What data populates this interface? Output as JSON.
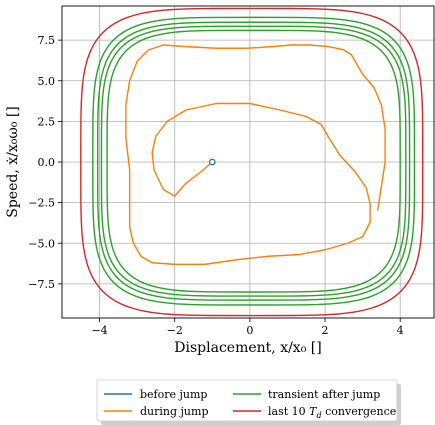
{
  "chart_data": {
    "type": "line",
    "xlabel": "Displacement, x/x₀ []",
    "ylabel": "Speed, ẋ/x₀ω₀ []",
    "xlim": [
      -5.0,
      4.9
    ],
    "ylim": [
      -9.6,
      9.6
    ],
    "xticks": [
      -4,
      -2,
      0,
      2,
      4
    ],
    "xtick_labels": [
      "−4",
      "−2",
      "0",
      "2",
      "4"
    ],
    "yticks": [
      -7.5,
      -5.0,
      -2.5,
      0.0,
      2.5,
      5.0,
      7.5
    ],
    "ytick_labels": [
      "−7.5",
      "−5.0",
      "−2.5",
      "0.0",
      "2.5",
      "5.0",
      "7.5"
    ],
    "grid": true,
    "legend_placement": "below plot, two columns",
    "series": [
      {
        "name": "before jump",
        "color": "#1f77b4",
        "marker": "open circle",
        "x": [
          -1.0
        ],
        "y": [
          0.0
        ]
      },
      {
        "name": "during jump",
        "color": "#ff7f0e",
        "x": [
          -1.0,
          -1.3,
          -1.7,
          -2.0,
          -2.3,
          -2.55,
          -2.6,
          -2.5,
          -2.2,
          -1.7,
          -0.9,
          0.0,
          0.8,
          1.5,
          1.9,
          2.1,
          2.4,
          2.8,
          3.1,
          3.2,
          3.2,
          3.0,
          2.6,
          2.0,
          1.3,
          0.5,
          -0.3,
          -1.2,
          -2.0,
          -2.6,
          -2.9,
          -3.1,
          -3.2,
          -3.2,
          -3.2,
          -3.3,
          -3.3,
          -3.2,
          -3.0,
          -2.7,
          -2.3,
          -1.7,
          -0.9,
          -0.1,
          0.6,
          1.1,
          1.6,
          2.1,
          2.5,
          2.7,
          2.8,
          2.9,
          3.0,
          3.3,
          3.5,
          3.6,
          3.6,
          3.5,
          3.4
        ],
        "y": [
          0.0,
          -0.6,
          -1.3,
          -2.1,
          -1.7,
          -0.5,
          0.6,
          1.6,
          2.5,
          3.2,
          3.6,
          3.6,
          3.2,
          2.8,
          2.3,
          1.5,
          0.4,
          -0.6,
          -1.6,
          -2.6,
          -3.7,
          -4.6,
          -5.0,
          -5.4,
          -5.7,
          -5.8,
          -6.0,
          -6.3,
          -6.3,
          -6.2,
          -5.8,
          -5.0,
          -4.0,
          -2.5,
          -0.5,
          1.5,
          3.5,
          5.0,
          6.2,
          6.9,
          7.2,
          7.1,
          7.0,
          7.0,
          7.1,
          7.2,
          7.2,
          7.1,
          6.9,
          6.6,
          6.2,
          5.8,
          5.4,
          4.6,
          3.5,
          2.0,
          0.0,
          -1.5,
          -3.0
        ]
      },
      {
        "name": "transient after jump",
        "color": "#2ca02c",
        "loops": [
          {
            "cx": 0.1,
            "cy": 0.05,
            "rx": 3.9,
            "ry": 8.05
          },
          {
            "cx": 0.1,
            "cy": 0.05,
            "rx": 4.05,
            "ry": 8.3
          },
          {
            "cx": 0.1,
            "cy": 0.05,
            "rx": 4.15,
            "ry": 8.55
          },
          {
            "cx": 0.1,
            "cy": 0.05,
            "rx": 4.28,
            "ry": 8.85
          }
        ]
      },
      {
        "name": "last 10 $T_d$ convergence",
        "color": "#d62728",
        "loops": [
          {
            "cx": 0.05,
            "cy": 0.0,
            "rx": 4.55,
            "ry": 9.45
          }
        ]
      }
    ]
  },
  "legend": {
    "items": [
      {
        "label": "before jump",
        "color": "#1f77b4"
      },
      {
        "label": "during jump",
        "color": "#ff7f0e"
      },
      {
        "label": "transient after jump",
        "color": "#2ca02c"
      },
      {
        "label": "last 10 ",
        "subscript_label": "T",
        "sub": "d",
        "suffix": " convergence",
        "color": "#d62728"
      }
    ]
  }
}
